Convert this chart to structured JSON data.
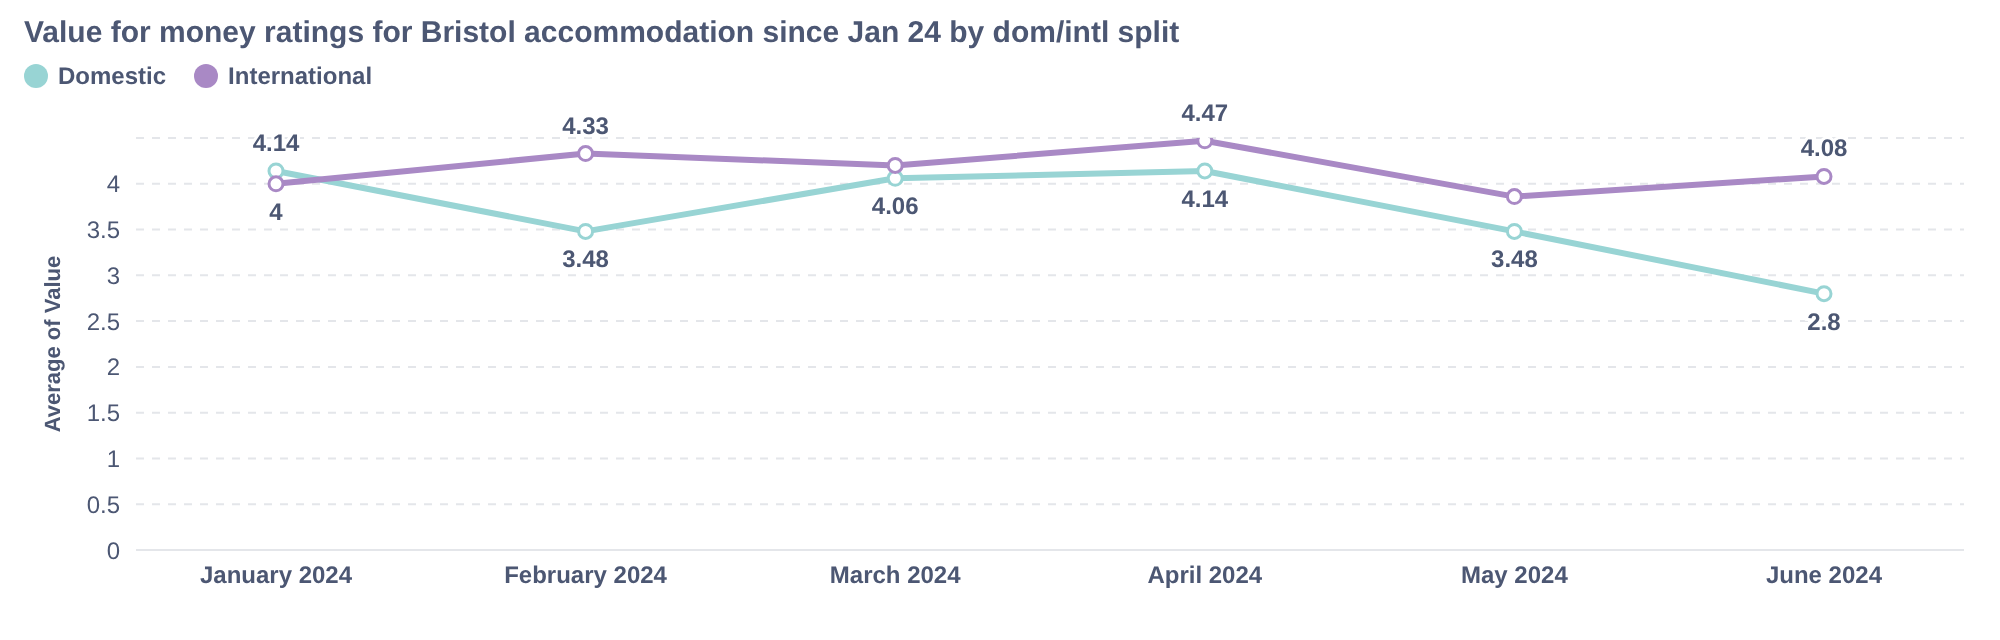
{
  "chart_data": {
    "type": "line",
    "title": "Value for money ratings for Bristol accommodation since Jan 24 by dom/intl split",
    "ylabel": "Average of Value",
    "categories": [
      "January 2024",
      "February 2024",
      "March 2024",
      "April 2024",
      "May 2024",
      "June 2024"
    ],
    "series": [
      {
        "name": "Domestic",
        "color": "#98d4d4",
        "values": [
          4.14,
          3.48,
          4.06,
          4.14,
          3.48,
          2.8
        ],
        "value_labels": [
          "4.14",
          "3.48",
          "4.06",
          "4.14",
          "3.48",
          "2.8"
        ]
      },
      {
        "name": "International",
        "color": "#a989c5",
        "values": [
          4,
          4.33,
          4.2,
          4.47,
          3.86,
          4.08
        ],
        "value_labels": [
          "4",
          "4.33",
          null,
          "4.47",
          null,
          "4.08"
        ]
      }
    ],
    "ylim": [
      0,
      4.5
    ],
    "yticks": [
      0,
      0.5,
      1,
      1.5,
      2,
      2.5,
      3,
      3.5,
      4
    ],
    "grid": "y",
    "legend": "top left",
    "marker": "circle",
    "line_style": "solid"
  }
}
